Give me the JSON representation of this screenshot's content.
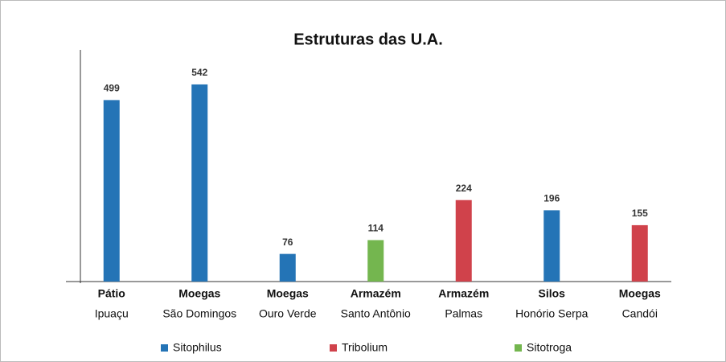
{
  "chart_data": {
    "type": "bar",
    "title": "Estruturas das U.A.",
    "categories": [
      [
        "Pátio",
        "Ipuaçu"
      ],
      [
        "Moegas",
        "São Domingos"
      ],
      [
        "Moegas",
        "Ouro Verde"
      ],
      [
        "Armazém",
        "Santo Antônio"
      ],
      [
        "Armazém",
        "Palmas"
      ],
      [
        "Silos",
        "Honório Serpa"
      ],
      [
        "Moegas",
        "Candói"
      ]
    ],
    "series": [
      {
        "name": "Sitophilus",
        "color": "#2474b6",
        "values": [
          499,
          542,
          76,
          null,
          null,
          196,
          null
        ]
      },
      {
        "name": "Tribolium",
        "color": "#d0424b",
        "values": [
          null,
          null,
          null,
          null,
          224,
          null,
          155
        ]
      },
      {
        "name": "Sitotroga",
        "color": "#74b64f",
        "values": [
          null,
          null,
          null,
          114,
          null,
          null,
          null
        ]
      }
    ],
    "ylim": [
      0,
      637
    ]
  }
}
